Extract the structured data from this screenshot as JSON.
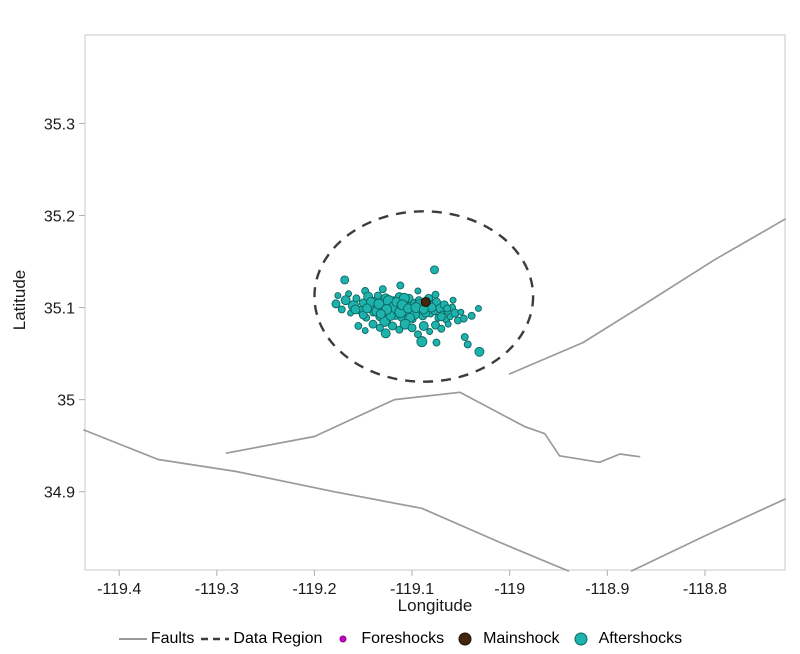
{
  "legend": {
    "items": [
      {
        "label": "Faults",
        "type": "line",
        "color": "#9a9a9a",
        "size": 2
      },
      {
        "label": "Data Region",
        "type": "dashed-line",
        "color": "#3c3c3c",
        "size": 2.4
      },
      {
        "label": "Foreshocks",
        "type": "dot",
        "color": "#c700c7",
        "edge": "#8a008a",
        "size": 6
      },
      {
        "label": "Mainshock",
        "type": "dot",
        "color": "#42250b",
        "edge": "#1c0f04",
        "size": 12
      },
      {
        "label": "Aftershocks",
        "type": "dot",
        "color": "#1db3ac",
        "edge": "#0d6662",
        "size": 12
      }
    ]
  },
  "chart_data": {
    "type": "scatter",
    "title": "",
    "xlabel": "Longitude",
    "ylabel": "Latitude",
    "xlim": [
      -119.435,
      -118.718
    ],
    "ylim": [
      34.815,
      35.396
    ],
    "grid": false,
    "legend_position": "bottom",
    "xticks": {
      "values": [
        -119.4,
        -119.3,
        -119.2,
        -119.1,
        -119.0,
        -118.9,
        -118.8
      ],
      "labels": [
        "-119.4",
        "-119.3",
        "-119.2",
        "-119.1",
        "-119",
        "-118.9",
        "-118.8"
      ]
    },
    "yticks": {
      "values": [
        34.9,
        35.0,
        35.1,
        35.2,
        35.3
      ],
      "labels": [
        "34.9",
        "35",
        "35.1",
        "35.2",
        "35.3"
      ]
    },
    "colors": {
      "fault": "#9a9a9a",
      "data_region": "#3c3c3c",
      "frame": "#c9c9c9",
      "tick": "#b0b0b0",
      "text": "#1a1a1a",
      "foreshock": "#c700c7",
      "mainshock": "#42250b",
      "aftershock": "#1db3ac",
      "aftershock_edge": "#0d6662"
    },
    "faults": [
      [
        [
          -119.0,
          35.028
        ],
        [
          -118.925,
          35.062
        ],
        [
          -118.86,
          35.105
        ],
        [
          -118.79,
          35.152
        ],
        [
          -118.718,
          35.196
        ]
      ],
      [
        [
          -119.29,
          34.942
        ],
        [
          -119.2,
          34.96
        ],
        [
          -119.118,
          35.0
        ],
        [
          -119.051,
          35.008
        ],
        [
          -118.985,
          34.971
        ],
        [
          -118.964,
          34.963
        ],
        [
          -118.949,
          34.939
        ],
        [
          -118.908,
          34.932
        ],
        [
          -118.887,
          34.941
        ],
        [
          -118.867,
          34.938
        ]
      ],
      [
        [
          -119.436,
          34.967
        ],
        [
          -119.36,
          34.935
        ],
        [
          -119.28,
          34.922
        ],
        [
          -119.18,
          34.9
        ],
        [
          -119.09,
          34.882
        ],
        [
          -119.01,
          34.845
        ],
        [
          -118.965,
          34.825
        ],
        [
          -118.94,
          34.814
        ]
      ],
      [
        [
          -118.875,
          34.814
        ],
        [
          -118.8,
          34.852
        ],
        [
          -118.718,
          34.892
        ]
      ]
    ],
    "data_region_ellipse": {
      "center": [
        -119.088,
        35.112
      ],
      "rx": 0.112,
      "ry": 0.0925
    },
    "series": [
      {
        "name": "Foreshocks",
        "points": []
      },
      {
        "name": "Mainshock",
        "points": [
          [
            -119.086,
            35.106,
            4.5
          ]
        ]
      },
      {
        "name": "Aftershocks",
        "points": [
          [
            -119.169,
            35.13,
            4
          ],
          [
            -119.176,
            35.113,
            3
          ],
          [
            -119.077,
            35.141,
            4
          ],
          [
            -119.112,
            35.124,
            3.5
          ],
          [
            -119.13,
            35.12,
            3.5
          ],
          [
            -119.094,
            35.118,
            3
          ],
          [
            -119.148,
            35.118,
            3.5
          ],
          [
            -119.165,
            35.115,
            3
          ],
          [
            -119.058,
            35.108,
            3
          ],
          [
            -119.076,
            35.114,
            3.5
          ],
          [
            -119.178,
            35.104,
            4
          ],
          [
            -119.172,
            35.098,
            3.5
          ],
          [
            -119.168,
            35.108,
            4.5
          ],
          [
            -119.163,
            35.094,
            3
          ],
          [
            -119.16,
            35.102,
            5
          ],
          [
            -119.157,
            35.11,
            3.5
          ],
          [
            -119.153,
            35.097,
            4
          ],
          [
            -119.15,
            35.105,
            4
          ],
          [
            -119.147,
            35.089,
            3.5
          ],
          [
            -119.145,
            35.112,
            4.5
          ],
          [
            -119.142,
            35.1,
            5.5
          ],
          [
            -119.14,
            35.094,
            3
          ],
          [
            -119.138,
            35.107,
            4
          ],
          [
            -119.135,
            35.113,
            3.5
          ],
          [
            -119.133,
            35.09,
            4
          ],
          [
            -119.131,
            35.101,
            6
          ],
          [
            -119.129,
            35.095,
            3.5
          ],
          [
            -119.127,
            35.11,
            4.5
          ],
          [
            -119.125,
            35.086,
            3
          ],
          [
            -119.123,
            35.103,
            5
          ],
          [
            -119.121,
            35.097,
            4
          ],
          [
            -119.119,
            35.108,
            3.5
          ],
          [
            -119.117,
            35.092,
            4.5
          ],
          [
            -119.115,
            35.101,
            6.5
          ],
          [
            -119.113,
            35.112,
            4
          ],
          [
            -119.111,
            35.089,
            3.5
          ],
          [
            -119.109,
            35.098,
            5
          ],
          [
            -119.107,
            35.105,
            4.5
          ],
          [
            -119.105,
            35.094,
            3.5
          ],
          [
            -119.103,
            35.11,
            4
          ],
          [
            -119.101,
            35.1,
            5.5
          ],
          [
            -119.099,
            35.087,
            3
          ],
          [
            -119.097,
            35.104,
            4.5
          ],
          [
            -119.095,
            35.096,
            4
          ],
          [
            -119.093,
            35.108,
            3.5
          ],
          [
            -119.091,
            35.099,
            5
          ],
          [
            -119.089,
            35.091,
            4
          ],
          [
            -119.087,
            35.105,
            4.5
          ],
          [
            -119.085,
            35.097,
            3.5
          ],
          [
            -119.083,
            35.11,
            4
          ],
          [
            -119.081,
            35.093,
            3
          ],
          [
            -119.079,
            35.102,
            4.5
          ],
          [
            -119.077,
            35.096,
            3.5
          ],
          [
            -119.075,
            35.106,
            4
          ],
          [
            -119.073,
            35.089,
            3.5
          ],
          [
            -119.071,
            35.099,
            4.5
          ],
          [
            -119.069,
            35.093,
            3
          ],
          [
            -119.067,
            35.103,
            4
          ],
          [
            -119.065,
            35.087,
            3.5
          ],
          [
            -119.063,
            35.096,
            4
          ],
          [
            -119.061,
            35.09,
            3
          ],
          [
            -119.059,
            35.1,
            3.5
          ],
          [
            -119.056,
            35.094,
            4
          ],
          [
            -119.053,
            35.086,
            3.5
          ],
          [
            -119.05,
            35.095,
            3
          ],
          [
            -119.158,
            35.098,
            4.5
          ],
          [
            -119.136,
            35.096,
            5
          ],
          [
            -119.124,
            35.107,
            5.5
          ],
          [
            -119.118,
            35.1,
            6
          ],
          [
            -119.108,
            35.11,
            5
          ],
          [
            -119.098,
            35.093,
            5.5
          ],
          [
            -119.128,
            35.085,
            5
          ],
          [
            -119.142,
            35.106,
            4.5
          ],
          [
            -119.102,
            35.089,
            4.5
          ],
          [
            -119.092,
            35.102,
            6
          ],
          [
            -119.112,
            35.095,
            5.5
          ],
          [
            -119.122,
            35.091,
            4.5
          ],
          [
            -119.086,
            35.094,
            4
          ],
          [
            -119.08,
            35.1,
            4.5
          ],
          [
            -119.07,
            35.09,
            4
          ],
          [
            -119.064,
            35.099,
            3.5
          ],
          [
            -119.15,
            35.092,
            4
          ],
          [
            -119.146,
            35.099,
            4.5
          ],
          [
            -119.134,
            35.104,
            5
          ],
          [
            -119.116,
            35.106,
            4.5
          ],
          [
            -119.11,
            35.103,
            5
          ],
          [
            -119.104,
            35.099,
            4.5
          ],
          [
            -119.096,
            35.1,
            5
          ],
          [
            -119.088,
            35.098,
            4.5
          ],
          [
            -119.126,
            35.098,
            5
          ],
          [
            -119.132,
            35.093,
            4.5
          ],
          [
            -119.155,
            35.08,
            3.5
          ],
          [
            -119.148,
            35.075,
            3
          ],
          [
            -119.14,
            35.082,
            4
          ],
          [
            -119.133,
            35.078,
            3.5
          ],
          [
            -119.127,
            35.072,
            4.5
          ],
          [
            -119.12,
            35.08,
            4
          ],
          [
            -119.113,
            35.076,
            3.5
          ],
          [
            -119.107,
            35.082,
            5
          ],
          [
            -119.1,
            35.078,
            4
          ],
          [
            -119.094,
            35.071,
            3.5
          ],
          [
            -119.088,
            35.08,
            4.5
          ],
          [
            -119.082,
            35.074,
            3
          ],
          [
            -119.076,
            35.081,
            4
          ],
          [
            -119.07,
            35.077,
            3.5
          ],
          [
            -119.063,
            35.082,
            3
          ],
          [
            -119.09,
            35.063,
            5
          ],
          [
            -119.075,
            35.062,
            3.5
          ],
          [
            -119.046,
            35.068,
            3.5
          ],
          [
            -119.043,
            35.06,
            3.5
          ],
          [
            -119.031,
            35.052,
            4.5
          ],
          [
            -119.039,
            35.091,
            3.5
          ],
          [
            -119.032,
            35.099,
            3
          ],
          [
            -119.047,
            35.088,
            3.5
          ]
        ]
      }
    ]
  }
}
